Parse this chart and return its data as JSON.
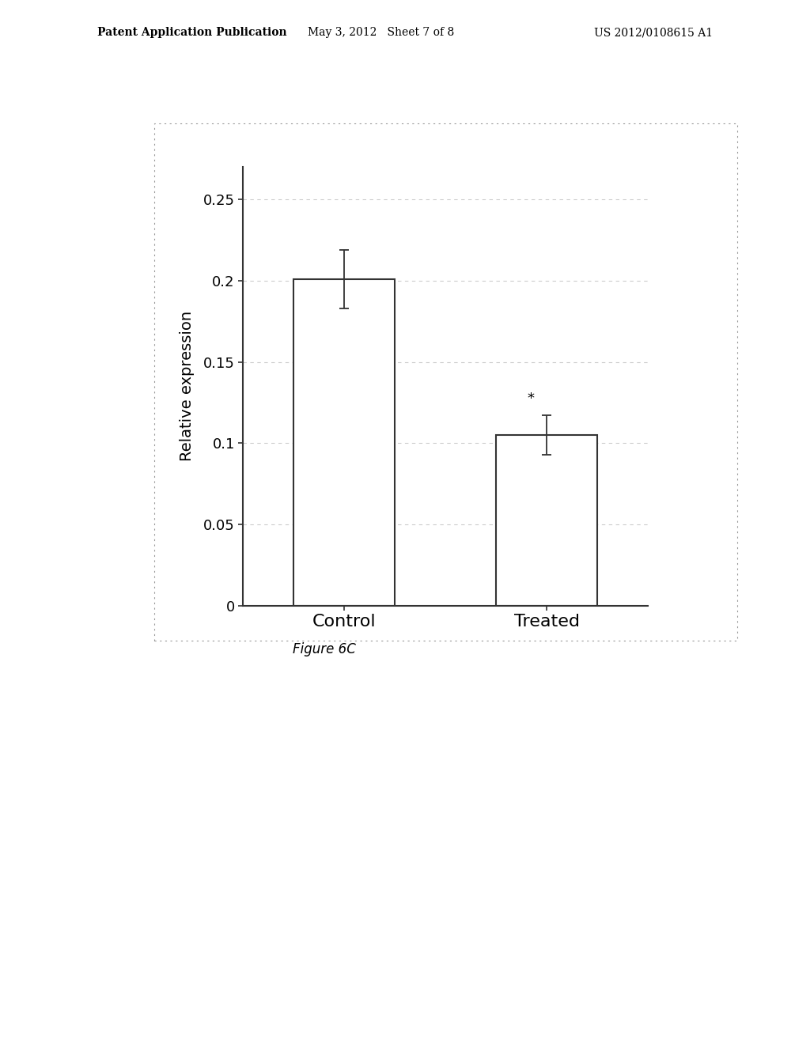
{
  "categories": [
    "Control",
    "Treated"
  ],
  "values": [
    0.201,
    0.105
  ],
  "errors_up": [
    0.018,
    0.012
  ],
  "errors_down": [
    0.018,
    0.012
  ],
  "bar_color": "#ffffff",
  "bar_edgecolor": "#333333",
  "bar_linewidth": 1.5,
  "ylabel": "Relative expression",
  "ylim": [
    0,
    0.27
  ],
  "yticks": [
    0,
    0.05,
    0.1,
    0.15,
    0.2,
    0.25
  ],
  "ytick_labels": [
    "0",
    "0.05",
    "0.1",
    "0.15",
    "0.2",
    "0.25"
  ],
  "figure_caption": "Figure 6C",
  "header_left": "Patent Application Publication",
  "header_center": "May 3, 2012   Sheet 7 of 8",
  "header_right": "US 2012/0108615 A1",
  "significance_label": "*",
  "bar_width": 0.5,
  "background_color": "#ffffff",
  "plot_background": "#ffffff",
  "error_capsize": 4,
  "error_color": "#333333",
  "tick_label_fontsize": 13,
  "ylabel_fontsize": 14,
  "xlabel_fontsize": 16,
  "caption_fontsize": 12,
  "header_fontsize": 10,
  "box_edgecolor": "#999999",
  "box_linestyle": "dotted",
  "grid_color": "#cccccc",
  "spine_color": "#333333"
}
